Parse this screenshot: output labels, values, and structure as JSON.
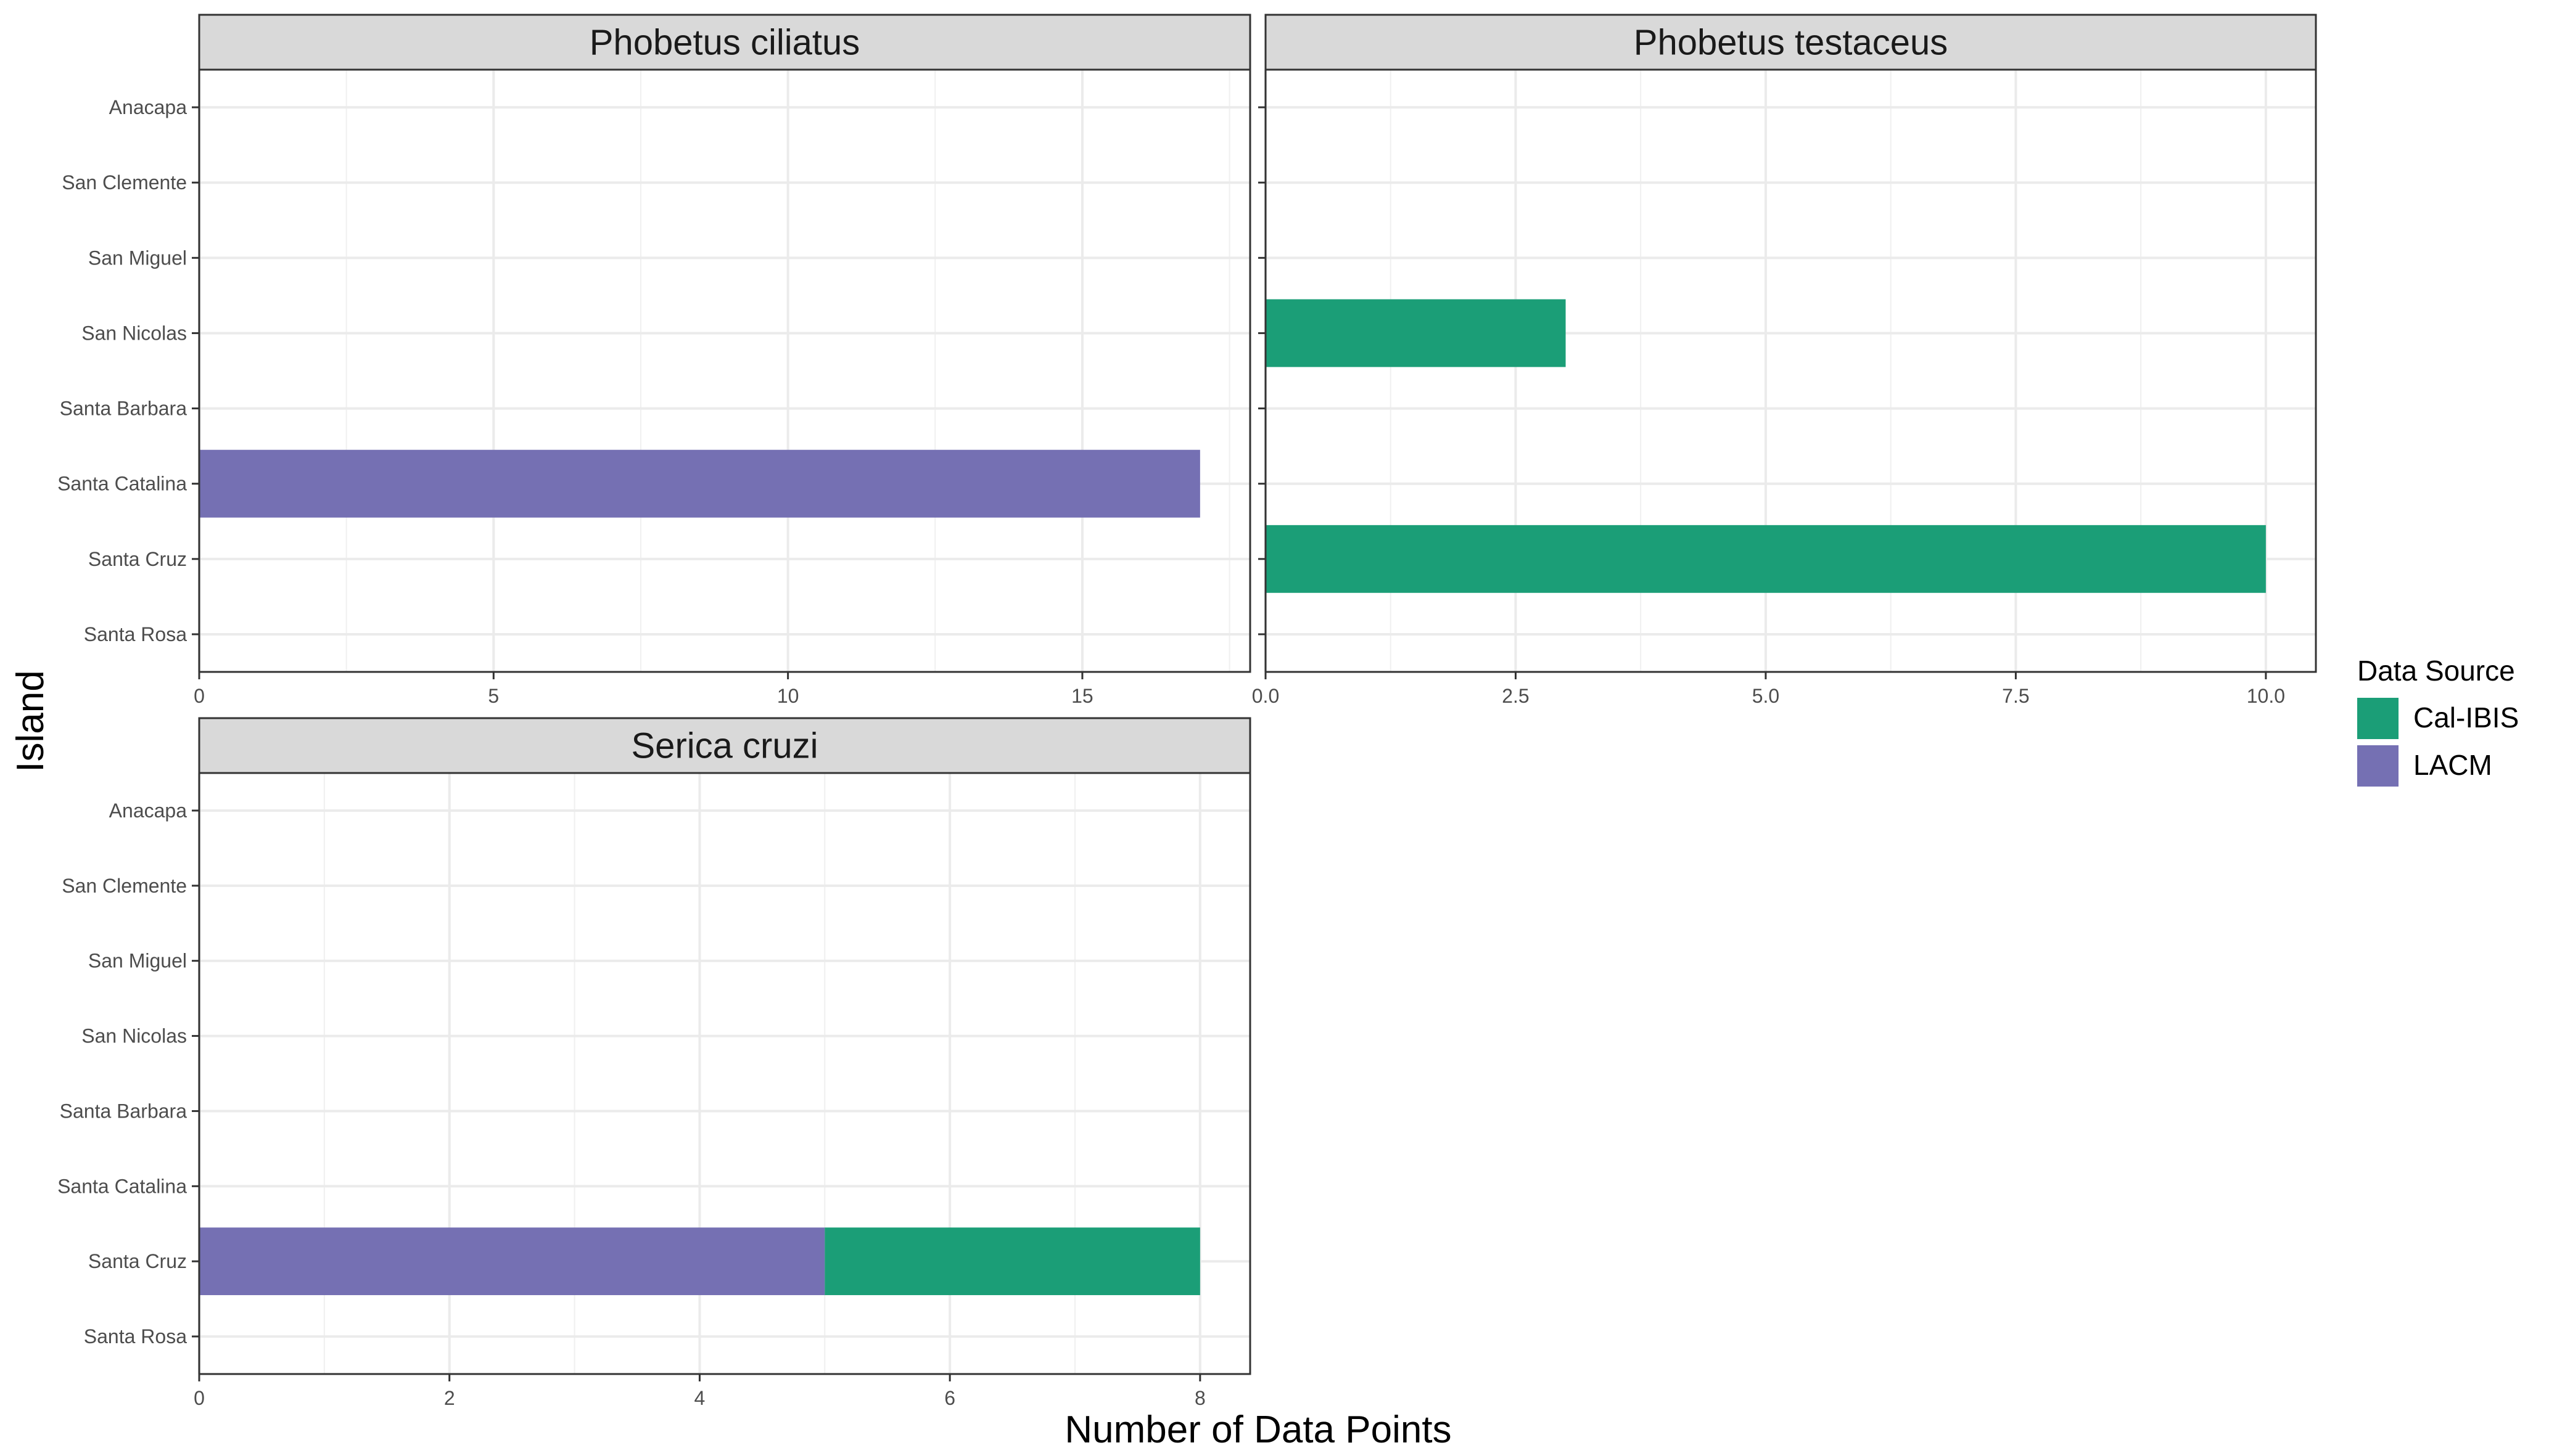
{
  "chart_data": {
    "type": "bar",
    "orientation": "horizontal",
    "stacked": true,
    "xlabel": "Number of Data Points",
    "ylabel": "Island",
    "legend": {
      "title": "Data Source",
      "position": "right",
      "entries": [
        {
          "name": "Cal-IBIS",
          "color": "#1b9e77"
        },
        {
          "name": "LACM",
          "color": "#7570b3"
        }
      ]
    },
    "grid": true,
    "categories": [
      "Anacapa",
      "San Clemente",
      "San Miguel",
      "San Nicolas",
      "Santa Barbara",
      "Santa Catalina",
      "Santa Cruz",
      "Santa Rosa"
    ],
    "panels": [
      {
        "title": "Phobetus ciliatus",
        "xlim": [
          0,
          17.85
        ],
        "xticks": [
          0,
          5,
          10,
          15
        ],
        "xtick_labels": [
          "0",
          "5",
          "10",
          "15"
        ],
        "series": [
          {
            "name": "Cal-IBIS",
            "values": [
              0,
              0,
              0,
              0,
              0,
              0,
              0,
              0
            ]
          },
          {
            "name": "LACM",
            "values": [
              0,
              0,
              0,
              0,
              0,
              17,
              0,
              0
            ]
          }
        ]
      },
      {
        "title": "Phobetus testaceus",
        "xlim": [
          0,
          10.5
        ],
        "xticks": [
          0,
          2.5,
          5,
          7.5,
          10
        ],
        "xtick_labels": [
          "0.0",
          "2.5",
          "5.0",
          "7.5",
          "10.0"
        ],
        "series": [
          {
            "name": "Cal-IBIS",
            "values": [
              0,
              0,
              0,
              3,
              0,
              0,
              10,
              0
            ]
          },
          {
            "name": "LACM",
            "values": [
              0,
              0,
              0,
              0,
              0,
              0,
              0,
              0
            ]
          }
        ]
      },
      {
        "title": "Serica cruzi",
        "xlim": [
          0,
          8.4
        ],
        "xticks": [
          0,
          2,
          4,
          6,
          8
        ],
        "xtick_labels": [
          "0",
          "2",
          "4",
          "6",
          "8"
        ],
        "series": [
          {
            "name": "Cal-IBIS",
            "values": [
              0,
              0,
              0,
              0,
              0,
              0,
              3,
              0
            ]
          },
          {
            "name": "LACM",
            "values": [
              0,
              0,
              0,
              0,
              0,
              0,
              5,
              0
            ]
          }
        ]
      }
    ]
  }
}
